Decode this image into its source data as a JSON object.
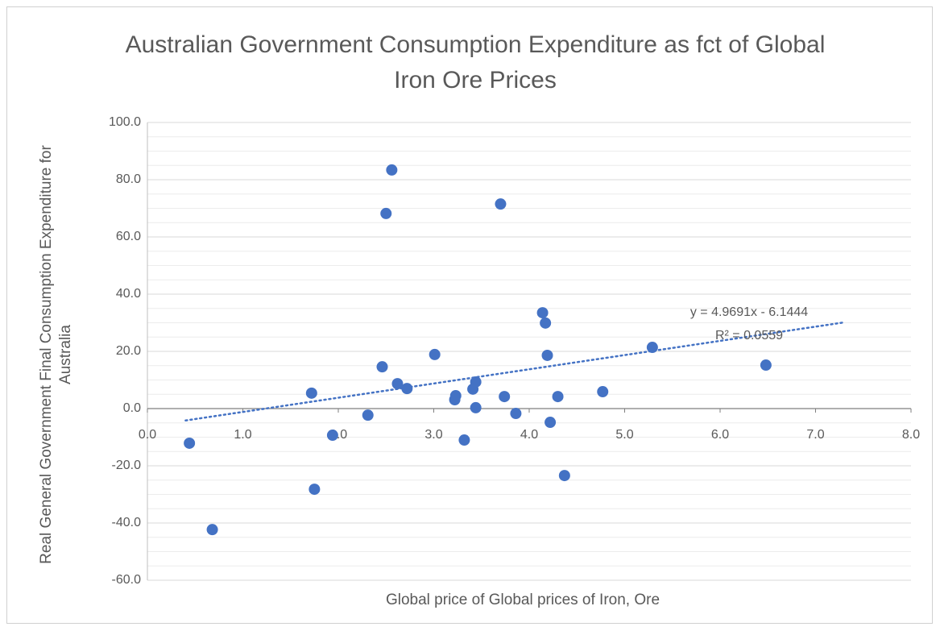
{
  "chart_data": {
    "type": "scatter",
    "title": "Australian Government Consumption Expenditure as fct of Global Iron Ore Prices",
    "x_label": "Global price of Global prices of  Iron, Ore",
    "y_label": "Real General Government Final Consumption Expenditure for Australia",
    "color": "#4472c4",
    "x": [
      0.44,
      0.68,
      1.72,
      1.75,
      1.94,
      2.31,
      2.46,
      2.5,
      2.56,
      2.62,
      2.72,
      3.01,
      3.22,
      3.23,
      3.32,
      3.41,
      3.44,
      3.44,
      3.7,
      3.74,
      3.86,
      4.14,
      4.17,
      4.19,
      4.22,
      4.3,
      4.37,
      4.77,
      5.29,
      6.48
    ],
    "values": [
      -12.1,
      -42.3,
      5.4,
      -28.2,
      -9.3,
      -2.3,
      14.6,
      68.2,
      83.4,
      8.7,
      7.0,
      18.9,
      3.1,
      4.5,
      -11.0,
      6.8,
      9.3,
      0.3,
      71.5,
      4.2,
      -1.7,
      33.5,
      29.9,
      18.6,
      -4.8,
      4.2,
      -23.4,
      5.9,
      21.4,
      15.2
    ],
    "xlim": [
      0,
      8
    ],
    "ylim": [
      -60,
      100
    ],
    "xticks": [
      {
        "value": 0,
        "label": "0.0"
      },
      {
        "value": 1,
        "label": "1.0"
      },
      {
        "value": 2,
        "label": "2.0"
      },
      {
        "value": 3,
        "label": "3.0"
      },
      {
        "value": 4,
        "label": "4.0"
      },
      {
        "value": 5,
        "label": "5.0"
      },
      {
        "value": 6,
        "label": "6.0"
      },
      {
        "value": 7,
        "label": "7.0"
      },
      {
        "value": 8,
        "label": "8.0"
      }
    ],
    "yticks": [
      {
        "value": -60,
        "label": "-60.0"
      },
      {
        "value": -40,
        "label": "-40.0"
      },
      {
        "value": -20,
        "label": "-20.0"
      },
      {
        "value": 0,
        "label": "0.0"
      },
      {
        "value": 20,
        "label": "20.0"
      },
      {
        "value": 40,
        "label": "40.0"
      },
      {
        "value": 60,
        "label": "60.0"
      },
      {
        "value": 80,
        "label": "80.0"
      },
      {
        "value": 100,
        "label": "100.0"
      }
    ],
    "y_minor_ticks": [
      -55,
      -50,
      -45,
      -35,
      -30,
      -25,
      -15,
      -10,
      -5,
      5,
      10,
      15,
      25,
      30,
      35,
      45,
      50,
      55,
      65,
      70,
      75,
      85,
      90,
      95
    ],
    "grid": true,
    "trendline": {
      "equation": "y = 4.9691x - 6.1444",
      "r_squared": "R² = 0.0559",
      "slope": 4.9691,
      "intercept": -6.1444,
      "x_start": 0.4,
      "x_end": 7.3,
      "color": "#4472c4",
      "style": "dotted"
    }
  }
}
